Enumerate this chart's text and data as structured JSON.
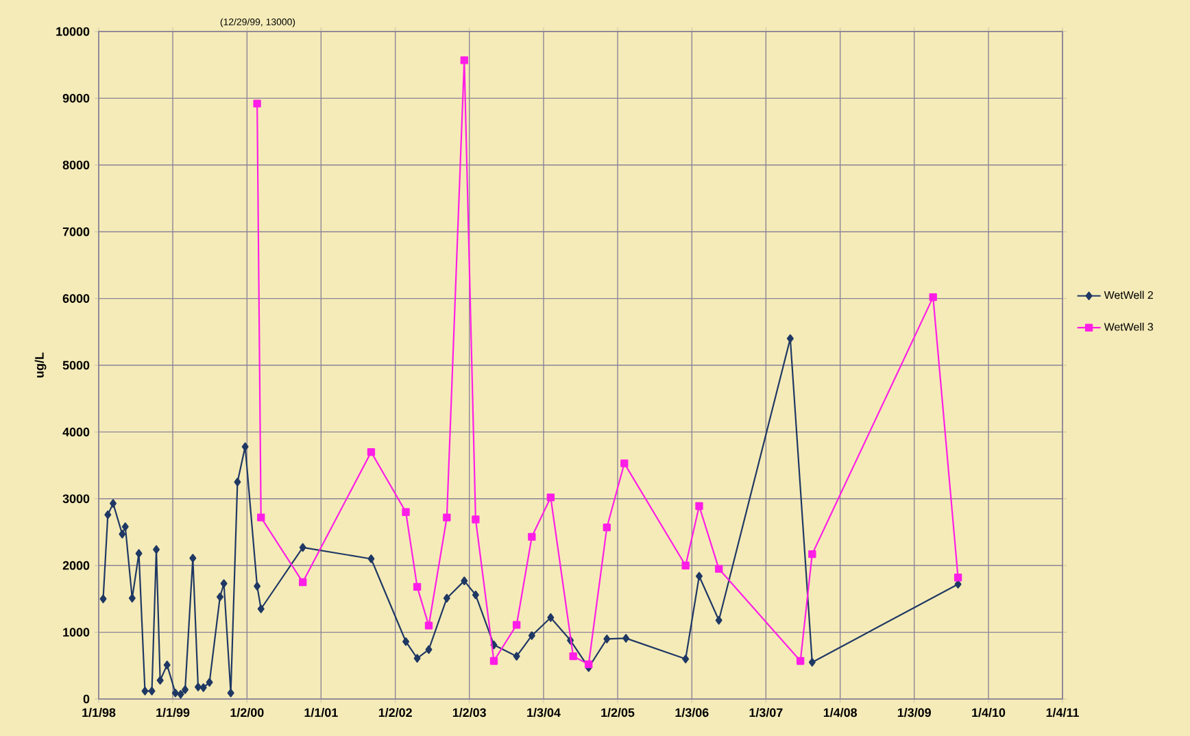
{
  "chart_data": {
    "type": "line",
    "ylabel": "ug/L",
    "xlim": [
      "1998-01-01",
      "2011-01-04"
    ],
    "xticks": [
      {
        "value": "1998-01-01",
        "label": "1/1/98"
      },
      {
        "value": "1999-01-01",
        "label": "1/1/99"
      },
      {
        "value": "2000-01-02",
        "label": "1/2/00"
      },
      {
        "value": "2001-01-01",
        "label": "1/1/01"
      },
      {
        "value": "2002-01-02",
        "label": "1/2/02"
      },
      {
        "value": "2003-01-02",
        "label": "1/2/03"
      },
      {
        "value": "2004-01-03",
        "label": "1/3/04"
      },
      {
        "value": "2005-01-02",
        "label": "1/2/05"
      },
      {
        "value": "2006-01-03",
        "label": "1/3/06"
      },
      {
        "value": "2007-01-03",
        "label": "1/3/07"
      },
      {
        "value": "2008-01-04",
        "label": "1/4/08"
      },
      {
        "value": "2009-01-03",
        "label": "1/3/09"
      },
      {
        "value": "2010-01-04",
        "label": "1/4/10"
      },
      {
        "value": "2011-01-04",
        "label": "1/4/11"
      }
    ],
    "ylim": [
      0,
      10000
    ],
    "yticks": [
      0,
      1000,
      2000,
      3000,
      4000,
      5000,
      6000,
      7000,
      8000,
      9000,
      10000
    ],
    "grid": true,
    "legend": "right",
    "line_style": "solid",
    "annotations": [
      "(12/29/99, 13000)"
    ],
    "series": [
      {
        "name": "WetWell 2",
        "color": "#1f3864",
        "marker": "diamond",
        "x": [
          "1998-01-23",
          "1998-02-15",
          "1998-03-13",
          "1998-04-27",
          "1998-05-12",
          "1998-06-15",
          "1998-07-18",
          "1998-08-17",
          "1998-09-20",
          "1998-10-12",
          "1998-10-31",
          "1998-12-04",
          "1999-01-14",
          "1999-02-09",
          "1999-03-03",
          "1999-04-10",
          "1999-05-06",
          "1999-06-01",
          "1999-07-01",
          "1999-08-22",
          "1999-09-10",
          "1999-10-14",
          "1999-11-16",
          "1999-12-24",
          "2000-02-21",
          "2000-03-11",
          "2000-10-03",
          "2001-09-05",
          "2002-02-23",
          "2002-04-20",
          "2002-06-16",
          "2002-09-13",
          "2002-12-08",
          "2003-02-02",
          "2003-05-03",
          "2003-08-23",
          "2003-11-06",
          "2004-02-07",
          "2004-05-14",
          "2004-08-12",
          "2004-11-10",
          "2005-02-12",
          "2005-12-03",
          "2006-02-08",
          "2006-05-16",
          "2007-05-03",
          "2007-08-19",
          "2009-08-07"
        ],
        "values": [
          1500,
          2760,
          2930,
          2470,
          2580,
          1510,
          2180,
          120,
          120,
          2240,
          280,
          510,
          90,
          70,
          140,
          2110,
          180,
          170,
          250,
          1530,
          1730,
          90,
          3250,
          3780,
          1690,
          1350,
          2270,
          2100,
          860,
          610,
          740,
          1510,
          1770,
          1560,
          810,
          640,
          950,
          1220,
          880,
          470,
          900,
          910,
          600,
          1840,
          1180,
          5400,
          550,
          1720
        ]
      },
      {
        "name": "WetWell 3",
        "color": "#ff1ee6",
        "marker": "square",
        "x": [
          "2000-02-21",
          "2000-03-11",
          "2000-10-03",
          "2001-09-05",
          "2002-02-23",
          "2002-04-20",
          "2002-06-16",
          "2002-09-13",
          "2002-12-08",
          "2003-02-02",
          "2003-05-03",
          "2003-08-23",
          "2003-11-06",
          "2004-02-07",
          "2004-05-28",
          "2004-08-12",
          "2004-11-10",
          "2005-02-04",
          "2005-12-03",
          "2006-02-08",
          "2006-05-16",
          "2007-06-22",
          "2007-08-19",
          "2009-04-06",
          "2009-08-07"
        ],
        "values": [
          8920,
          2720,
          1750,
          3700,
          2800,
          1680,
          1100,
          2720,
          9570,
          2690,
          570,
          1110,
          2430,
          3020,
          640,
          520,
          2570,
          3530,
          2000,
          2890,
          1950,
          570,
          2170,
          6020,
          1820
        ]
      }
    ]
  }
}
